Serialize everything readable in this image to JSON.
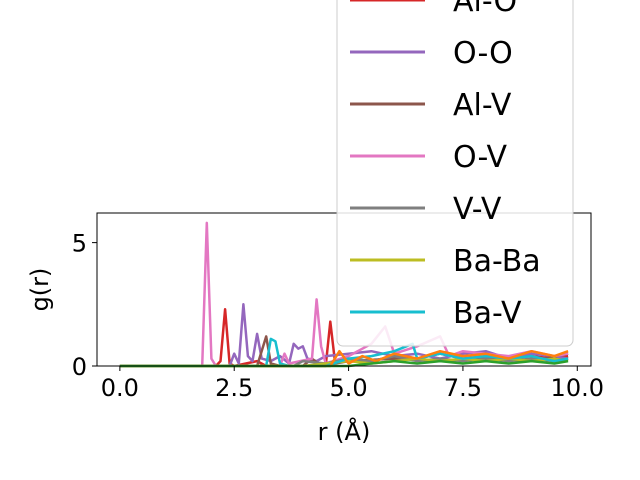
{
  "chart_data": {
    "type": "line",
    "xlabel": "r (Å)",
    "ylabel": "g(r)",
    "xlim": [
      -0.5,
      10.3
    ],
    "ylim": [
      0,
      6.2
    ],
    "xticks": [
      0.0,
      2.5,
      5.0,
      7.5,
      10.0
    ],
    "xtick_labels": [
      "0.0",
      "2.5",
      "5.0",
      "7.5",
      "10.0"
    ],
    "yticks": [
      0,
      5
    ],
    "ytick_labels": [
      "0",
      "5"
    ],
    "legend_position": "upper-right",
    "series": [
      {
        "name": "Al-O",
        "color": "#d62728",
        "points": [
          [
            0,
            0
          ],
          [
            2.1,
            0
          ],
          [
            2.2,
            0.2
          ],
          [
            2.3,
            2.3
          ],
          [
            2.4,
            0.1
          ],
          [
            2.5,
            0
          ],
          [
            3.0,
            0.2
          ],
          [
            3.2,
            0
          ],
          [
            4.5,
            0
          ],
          [
            4.6,
            1.8
          ],
          [
            4.7,
            0.2
          ],
          [
            5.0,
            0.3
          ],
          [
            5.5,
            0.2
          ],
          [
            6.0,
            0.4
          ],
          [
            6.5,
            0.3
          ],
          [
            7.0,
            0.5
          ],
          [
            7.5,
            0.3
          ],
          [
            8.0,
            0.4
          ],
          [
            8.5,
            0.3
          ],
          [
            9.0,
            0.4
          ],
          [
            9.5,
            0.3
          ],
          [
            9.8,
            0.4
          ]
        ]
      },
      {
        "name": "O-O",
        "color": "#9467bd",
        "points": [
          [
            0,
            0
          ],
          [
            2.4,
            0
          ],
          [
            2.5,
            0.5
          ],
          [
            2.6,
            0.1
          ],
          [
            2.7,
            2.5
          ],
          [
            2.8,
            0.4
          ],
          [
            2.9,
            0.2
          ],
          [
            3.0,
            1.3
          ],
          [
            3.1,
            0.3
          ],
          [
            3.3,
            0.2
          ],
          [
            3.5,
            0.4
          ],
          [
            3.7,
            0.1
          ],
          [
            3.8,
            0.9
          ],
          [
            3.9,
            0.7
          ],
          [
            4.0,
            0.8
          ],
          [
            4.1,
            0.3
          ],
          [
            4.3,
            0.2
          ],
          [
            4.5,
            0.4
          ],
          [
            5.0,
            0.5
          ],
          [
            5.5,
            0.6
          ],
          [
            6.0,
            0.4
          ],
          [
            6.5,
            0.5
          ],
          [
            7.0,
            0.3
          ],
          [
            7.5,
            0.5
          ],
          [
            8.0,
            0.6
          ],
          [
            8.5,
            0.3
          ],
          [
            9.0,
            0.5
          ],
          [
            9.5,
            0.4
          ],
          [
            9.8,
            0.3
          ]
        ]
      },
      {
        "name": "Al-V",
        "color": "#8c564b",
        "points": [
          [
            0,
            0
          ],
          [
            3.0,
            0
          ],
          [
            3.2,
            1.2
          ],
          [
            3.3,
            0.1
          ],
          [
            3.5,
            0
          ],
          [
            4.0,
            0
          ],
          [
            4.2,
            0.3
          ],
          [
            4.4,
            0
          ],
          [
            5.0,
            0.2
          ],
          [
            6.0,
            0.3
          ],
          [
            7.0,
            0.2
          ],
          [
            8.0,
            0.3
          ],
          [
            9.0,
            0.2
          ],
          [
            9.8,
            0.5
          ]
        ]
      },
      {
        "name": "O-V",
        "color": "#e377c2",
        "points": [
          [
            0,
            0
          ],
          [
            1.8,
            0
          ],
          [
            1.9,
            5.8
          ],
          [
            2.0,
            0.3
          ],
          [
            2.1,
            0
          ],
          [
            3.5,
            0
          ],
          [
            3.6,
            0.5
          ],
          [
            3.7,
            0.1
          ],
          [
            4.2,
            0.3
          ],
          [
            4.3,
            2.7
          ],
          [
            4.4,
            0.8
          ],
          [
            4.5,
            0.1
          ],
          [
            5.0,
            0.4
          ],
          [
            5.5,
            0.9
          ],
          [
            5.8,
            1.6
          ],
          [
            6.0,
            0.5
          ],
          [
            6.5,
            0.8
          ],
          [
            7.0,
            1.2
          ],
          [
            7.2,
            0.4
          ],
          [
            7.5,
            0.6
          ],
          [
            8.0,
            0.5
          ],
          [
            8.5,
            0.4
          ],
          [
            9.0,
            0.6
          ],
          [
            9.5,
            0.4
          ],
          [
            9.8,
            0.5
          ]
        ]
      },
      {
        "name": "V-V",
        "color": "#7f7f7f",
        "points": [
          [
            0,
            0
          ],
          [
            3.8,
            0
          ],
          [
            4.0,
            0.2
          ],
          [
            4.5,
            0.1
          ],
          [
            5.0,
            0.3
          ],
          [
            5.5,
            0.2
          ],
          [
            6.0,
            0.4
          ],
          [
            6.5,
            0.2
          ],
          [
            7.0,
            0.3
          ],
          [
            7.5,
            0.2
          ],
          [
            8.0,
            0.3
          ],
          [
            8.5,
            0.2
          ],
          [
            9.0,
            0.3
          ],
          [
            9.5,
            0.2
          ],
          [
            9.8,
            0.3
          ]
        ]
      },
      {
        "name": "Ba-Ba",
        "color": "#bcbd22",
        "points": [
          [
            0,
            0
          ],
          [
            4.0,
            0
          ],
          [
            4.5,
            0.1
          ],
          [
            5.0,
            0.2
          ],
          [
            5.5,
            0.1
          ],
          [
            6.0,
            0.2
          ],
          [
            6.5,
            0.3
          ],
          [
            7.0,
            0.2
          ],
          [
            7.5,
            0.3
          ],
          [
            8.0,
            0.2
          ],
          [
            8.5,
            0.3
          ],
          [
            9.0,
            0.2
          ],
          [
            9.5,
            0.3
          ],
          [
            9.8,
            0.2
          ]
        ]
      },
      {
        "name": "Ba-V",
        "color": "#17becf",
        "points": [
          [
            0,
            0
          ],
          [
            3.2,
            0
          ],
          [
            3.3,
            1.1
          ],
          [
            3.4,
            1.0
          ],
          [
            3.5,
            0.1
          ],
          [
            3.7,
            0
          ],
          [
            4.5,
            0
          ],
          [
            5.0,
            0.3
          ],
          [
            5.5,
            0.4
          ],
          [
            6.0,
            0.6
          ],
          [
            6.4,
            0.9
          ],
          [
            6.5,
            0.3
          ],
          [
            7.0,
            0.5
          ],
          [
            7.5,
            0.3
          ],
          [
            8.0,
            0.4
          ],
          [
            8.5,
            0.3
          ],
          [
            9.0,
            0.4
          ],
          [
            9.5,
            0.2
          ],
          [
            9.8,
            0.3
          ]
        ]
      },
      {
        "name": "",
        "color": "#ff7f0e",
        "points": [
          [
            0,
            0
          ],
          [
            4.6,
            0
          ],
          [
            4.8,
            0.6
          ],
          [
            5.0,
            0.1
          ],
          [
            5.3,
            0.4
          ],
          [
            5.6,
            0.2
          ],
          [
            6.0,
            0.5
          ],
          [
            6.5,
            0.3
          ],
          [
            7.0,
            0.6
          ],
          [
            7.5,
            0.4
          ],
          [
            8.0,
            0.5
          ],
          [
            8.5,
            0.3
          ],
          [
            9.0,
            0.6
          ],
          [
            9.5,
            0.4
          ],
          [
            9.8,
            0.6
          ]
        ]
      },
      {
        "name": "",
        "color": "#2ca02c",
        "points": [
          [
            0,
            0
          ],
          [
            5.0,
            0
          ],
          [
            5.5,
            0.1
          ],
          [
            6.0,
            0.2
          ],
          [
            6.5,
            0.1
          ],
          [
            7.0,
            0.2
          ],
          [
            7.5,
            0.1
          ],
          [
            8.0,
            0.2
          ],
          [
            8.5,
            0.1
          ],
          [
            9.0,
            0.2
          ],
          [
            9.5,
            0.1
          ],
          [
            9.8,
            0.2
          ]
        ]
      }
    ]
  }
}
